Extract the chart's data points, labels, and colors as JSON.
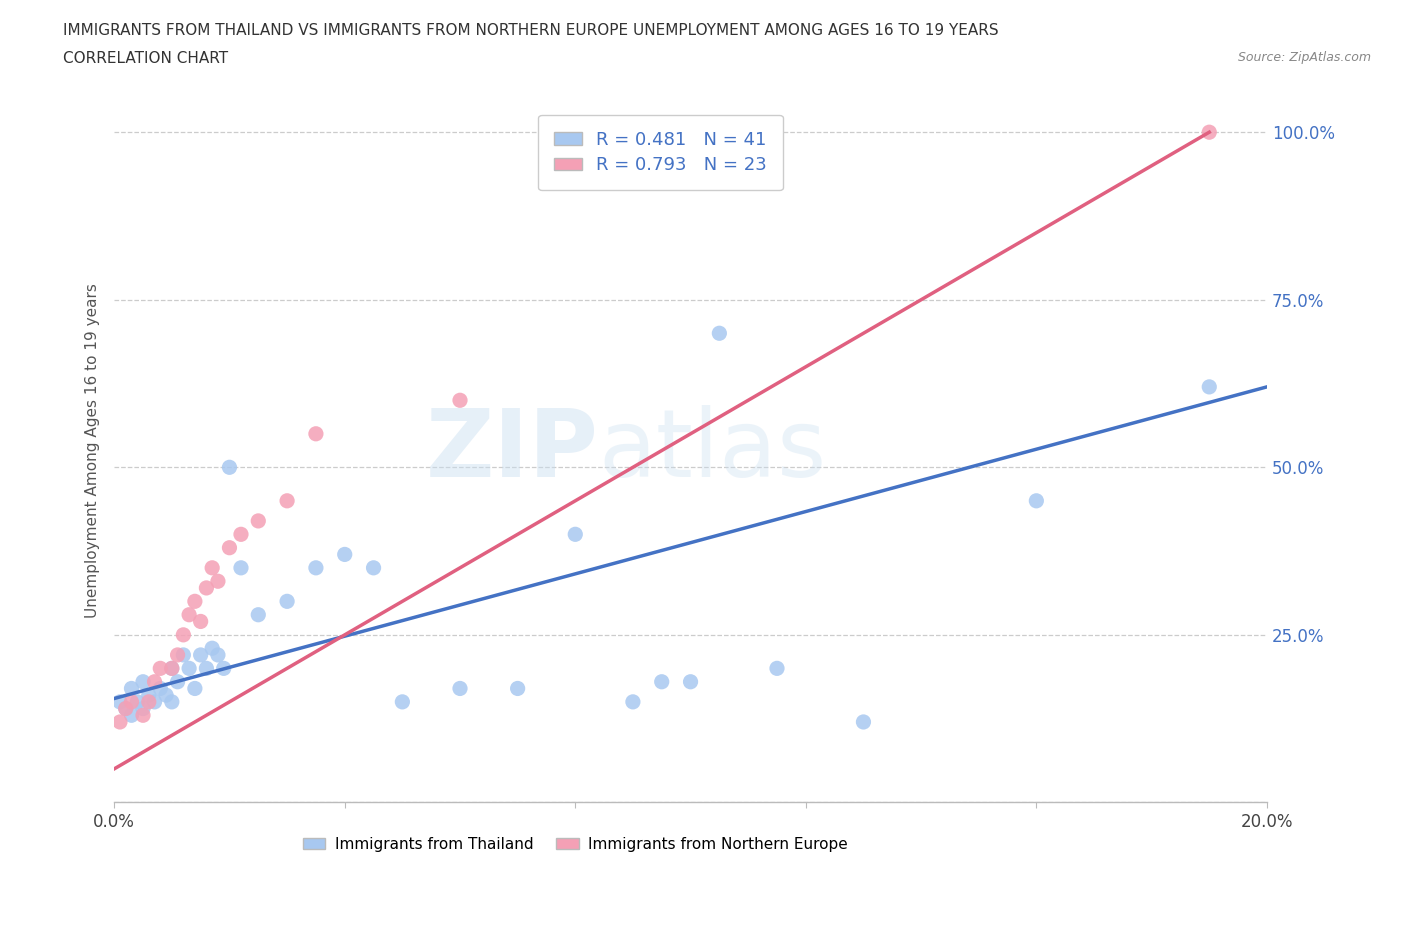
{
  "title_line1": "IMMIGRANTS FROM THAILAND VS IMMIGRANTS FROM NORTHERN EUROPE UNEMPLOYMENT AMONG AGES 16 TO 19 YEARS",
  "title_line2": "CORRELATION CHART",
  "source_text": "Source: ZipAtlas.com",
  "ylabel": "Unemployment Among Ages 16 to 19 years",
  "xlim": [
    0.0,
    0.2
  ],
  "ylim": [
    0.0,
    1.05
  ],
  "xticks": [
    0.0,
    0.04,
    0.08,
    0.12,
    0.16,
    0.2
  ],
  "xticklabels": [
    "0.0%",
    "",
    "",
    "",
    "",
    "20.0%"
  ],
  "yticks": [
    0.0,
    0.25,
    0.5,
    0.75,
    1.0
  ],
  "yticklabels": [
    "",
    "25.0%",
    "50.0%",
    "75.0%",
    "100.0%"
  ],
  "color_thailand": "#a8c8f0",
  "color_northern_europe": "#f4a0b5",
  "r_thailand": 0.481,
  "n_thailand": 41,
  "r_northern_europe": 0.793,
  "n_northern_europe": 23,
  "trend_color_thailand": "#4472c4",
  "trend_color_northern_europe": "#e06080",
  "watermark_line1": "ZIP",
  "watermark_line2": "atlas",
  "legend_r_color": "#4472c4",
  "background_color": "#ffffff",
  "grid_color": "#cccccc",
  "thailand_x": [
    0.001,
    0.002,
    0.003,
    0.003,
    0.004,
    0.005,
    0.005,
    0.006,
    0.007,
    0.008,
    0.009,
    0.01,
    0.01,
    0.011,
    0.012,
    0.013,
    0.014,
    0.015,
    0.016,
    0.017,
    0.018,
    0.019,
    0.02,
    0.022,
    0.025,
    0.03,
    0.035,
    0.04,
    0.045,
    0.05,
    0.06,
    0.07,
    0.08,
    0.09,
    0.095,
    0.1,
    0.105,
    0.115,
    0.13,
    0.16,
    0.19
  ],
  "thailand_y": [
    0.15,
    0.14,
    0.13,
    0.17,
    0.15,
    0.14,
    0.18,
    0.16,
    0.15,
    0.17,
    0.16,
    0.15,
    0.2,
    0.18,
    0.22,
    0.2,
    0.17,
    0.22,
    0.2,
    0.23,
    0.22,
    0.2,
    0.5,
    0.35,
    0.28,
    0.3,
    0.35,
    0.37,
    0.35,
    0.15,
    0.17,
    0.17,
    0.4,
    0.15,
    0.18,
    0.18,
    0.7,
    0.2,
    0.12,
    0.45,
    0.62
  ],
  "northern_europe_x": [
    0.001,
    0.002,
    0.003,
    0.005,
    0.006,
    0.007,
    0.008,
    0.01,
    0.011,
    0.012,
    0.013,
    0.014,
    0.015,
    0.016,
    0.017,
    0.018,
    0.02,
    0.022,
    0.025,
    0.03,
    0.035,
    0.06,
    0.19
  ],
  "northern_europe_y": [
    0.12,
    0.14,
    0.15,
    0.13,
    0.15,
    0.18,
    0.2,
    0.2,
    0.22,
    0.25,
    0.28,
    0.3,
    0.27,
    0.32,
    0.35,
    0.33,
    0.38,
    0.4,
    0.42,
    0.45,
    0.55,
    0.6,
    1.0
  ],
  "trend_thailand_x0": 0.0,
  "trend_thailand_y0": 0.155,
  "trend_thailand_x1": 0.2,
  "trend_thailand_y1": 0.62,
  "trend_ne_x0": 0.0,
  "trend_ne_y0": 0.05,
  "trend_ne_x1": 0.19,
  "trend_ne_y1": 1.0
}
